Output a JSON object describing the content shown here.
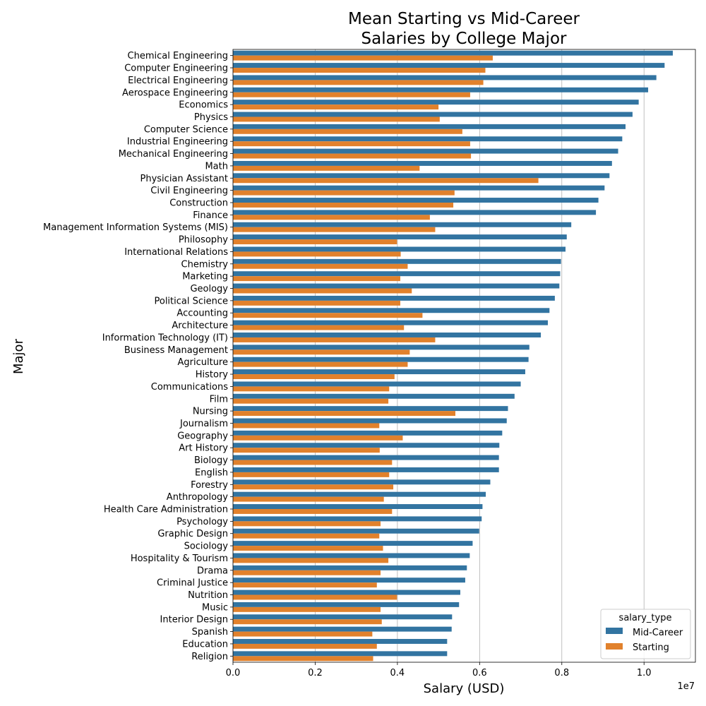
{
  "chart_data": {
    "type": "bar",
    "orientation": "horizontal",
    "title_lines": [
      "Mean Starting vs Mid-Career",
      "Salaries by College Major"
    ],
    "xlabel": "Salary (USD)",
    "ylabel": "Major",
    "x_offset_label": "1e7",
    "xlim": [
      0,
      11250000
    ],
    "x_ticks": [
      0,
      2000000,
      4000000,
      6000000,
      8000000,
      10000000
    ],
    "x_tick_labels": [
      "0.0",
      "0.2",
      "0.4",
      "0.6",
      "0.8",
      "1.0"
    ],
    "grid": "x-major",
    "legend": {
      "title": "salary_type",
      "placement": "lower-right"
    },
    "categories": [
      "Chemical Engineering",
      "Computer Engineering",
      "Electrical Engineering",
      "Aerospace Engineering",
      "Economics",
      "Physics",
      "Computer Science",
      "Industrial Engineering",
      "Mechanical Engineering",
      "Math",
      "Physician Assistant",
      "Civil Engineering",
      "Construction",
      "Finance",
      "Management Information Systems (MIS)",
      "Philosophy",
      "International Relations",
      "Chemistry",
      "Marketing",
      "Geology",
      "Political Science",
      "Accounting",
      "Architecture",
      "Information Technology (IT)",
      "Business Management",
      "Agriculture",
      "History",
      "Communications",
      "Film",
      "Nursing",
      "Journalism",
      "Geography",
      "Art History",
      "Biology",
      "English",
      "Forestry",
      "Anthropology",
      "Health Care Administration",
      "Psychology",
      "Graphic Design",
      "Sociology",
      "Hospitality & Tourism",
      "Drama",
      "Criminal Justice",
      "Nutrition",
      "Music",
      "Interior Design",
      "Spanish",
      "Education",
      "Religion"
    ],
    "series": [
      {
        "name": "Mid-Career",
        "color": "#3274a1",
        "values": [
          10700000,
          10500000,
          10300000,
          10100000,
          9870000,
          9720000,
          9550000,
          9470000,
          9370000,
          9220000,
          9160000,
          9040000,
          8890000,
          8830000,
          8230000,
          8120000,
          8090000,
          7980000,
          7960000,
          7940000,
          7830000,
          7700000,
          7660000,
          7490000,
          7210000,
          7190000,
          7110000,
          7000000,
          6850000,
          6690000,
          6660000,
          6550000,
          6480000,
          6470000,
          6470000,
          6260000,
          6150000,
          6070000,
          6050000,
          5990000,
          5830000,
          5760000,
          5690000,
          5650000,
          5530000,
          5500000,
          5330000,
          5320000,
          5210000,
          5210000
        ]
      },
      {
        "name": "Starting",
        "color": "#e1812c",
        "values": [
          6320000,
          6140000,
          6090000,
          5770000,
          5000000,
          5030000,
          5580000,
          5770000,
          5790000,
          4540000,
          7430000,
          5390000,
          5360000,
          4790000,
          4920000,
          3990000,
          4080000,
          4250000,
          4070000,
          4350000,
          4070000,
          4610000,
          4160000,
          4920000,
          4300000,
          4250000,
          3930000,
          3800000,
          3780000,
          5410000,
          3560000,
          4130000,
          3570000,
          3870000,
          3800000,
          3900000,
          3670000,
          3870000,
          3590000,
          3560000,
          3650000,
          3780000,
          3590000,
          3500000,
          3990000,
          3590000,
          3620000,
          3390000,
          3500000,
          3410000
        ]
      }
    ]
  }
}
